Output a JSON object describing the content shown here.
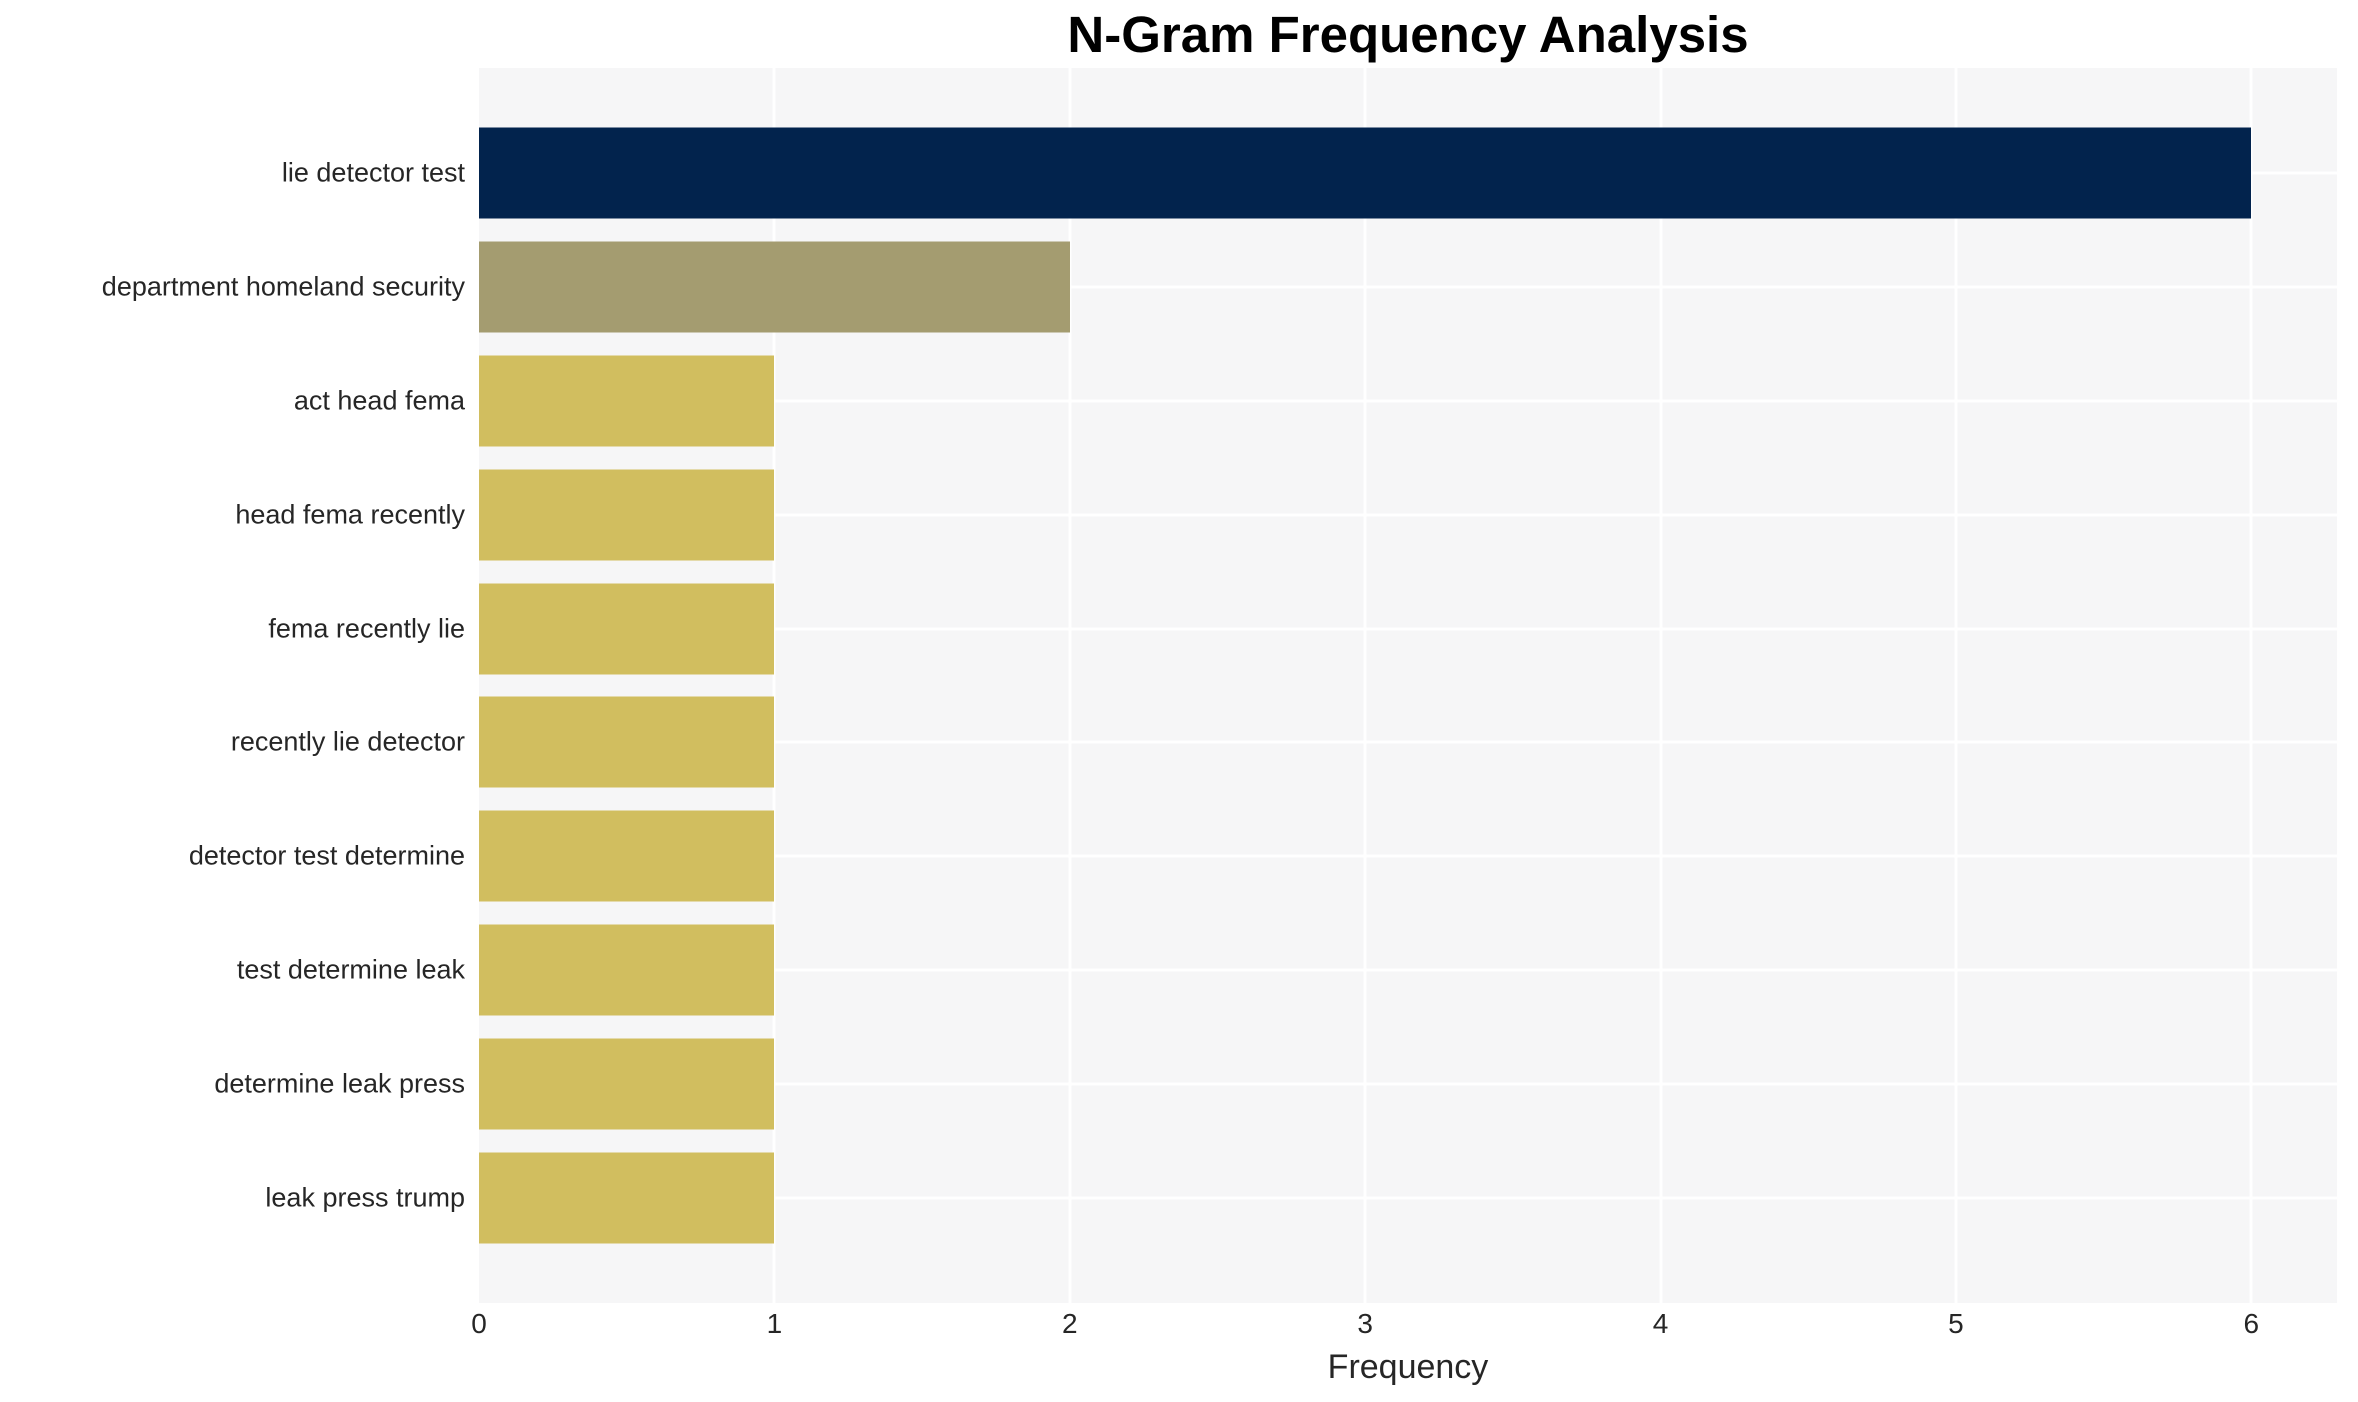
{
  "chart_data": {
    "type": "bar",
    "orientation": "horizontal",
    "title": "N-Gram Frequency Analysis",
    "xlabel": "Frequency",
    "ylabel": "",
    "categories": [
      "lie detector test",
      "department homeland security",
      "act head fema",
      "head fema recently",
      "fema recently lie",
      "recently lie detector",
      "detector test determine",
      "test determine leak",
      "determine leak press",
      "leak press trump"
    ],
    "values": [
      6,
      2,
      1,
      1,
      1,
      1,
      1,
      1,
      1,
      1
    ],
    "xticks": [
      0,
      1,
      2,
      3,
      4,
      5,
      6
    ],
    "xlim": [
      0,
      6.29
    ],
    "grid": true,
    "legend": "none",
    "colors": {
      "bar_colors": [
        "#02234d",
        "#a49c70",
        "#d1be5f",
        "#d1be5f",
        "#d1be5f",
        "#d1be5f",
        "#d1be5f",
        "#d1be5f",
        "#d1be5f",
        "#d1be5f"
      ],
      "plot_background": "#f6f6f7",
      "grid_color": "#ffffff",
      "title_color": "#000000",
      "text_color": "#262626"
    }
  }
}
